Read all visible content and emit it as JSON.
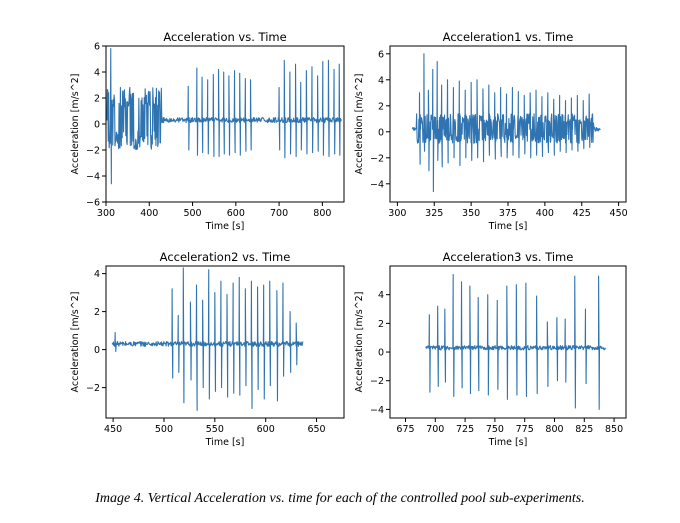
{
  "caption": "Image 4. Vertical Acceleration vs. time for each of the controlled pool sub-experiments.",
  "colors": {
    "line": "#2f74b0",
    "axes": "#000000"
  },
  "chart_data": [
    {
      "type": "line",
      "title": "Acceleration vs. Time",
      "xlabel": "Time [s]",
      "ylabel": "Acceleration [m/s^2]",
      "xlim": [
        300,
        850
      ],
      "ylim": [
        -6,
        6
      ],
      "xticks": [
        300,
        400,
        500,
        600,
        700,
        800
      ],
      "yticks": [
        -6,
        -4,
        -2,
        0,
        2,
        4,
        6
      ],
      "grid": false,
      "series": [
        {
          "baseline": 0.3,
          "baseline_noise": 0.2,
          "noisy_spans": [
            {
              "x": [
                303,
                428
              ],
              "amplitude": 2.6
            }
          ],
          "spikes": [
            {
              "x": 311,
              "high": 5.8,
              "low": -4.6
            },
            {
              "x": 490,
              "high": 2.9,
              "low": -2.0
            },
            {
              "x": 510,
              "high": 4.3,
              "low": -2.4
            },
            {
              "x": 522,
              "high": 3.6,
              "low": -2.2
            },
            {
              "x": 535,
              "high": 3.4,
              "low": -2.3
            },
            {
              "x": 548,
              "high": 3.8,
              "low": -2.5
            },
            {
              "x": 560,
              "high": 4.2,
              "low": -2.5
            },
            {
              "x": 572,
              "high": 4.0,
              "low": -2.3
            },
            {
              "x": 584,
              "high": 3.7,
              "low": -2.4
            },
            {
              "x": 597,
              "high": 4.1,
              "low": -2.2
            },
            {
              "x": 609,
              "high": 3.9,
              "low": -2.4
            },
            {
              "x": 622,
              "high": 3.5,
              "low": -2.1
            },
            {
              "x": 634,
              "high": 3.4,
              "low": -2.0
            },
            {
              "x": 700,
              "high": 2.8,
              "low": -2.0
            },
            {
              "x": 712,
              "high": 4.9,
              "low": -2.6
            },
            {
              "x": 725,
              "high": 4.0,
              "low": -2.3
            },
            {
              "x": 738,
              "high": 4.6,
              "low": -2.5
            },
            {
              "x": 750,
              "high": 3.2,
              "low": -2.0
            },
            {
              "x": 763,
              "high": 4.1,
              "low": -2.3
            },
            {
              "x": 776,
              "high": 4.4,
              "low": -2.2
            },
            {
              "x": 789,
              "high": 3.7,
              "low": -2.1
            },
            {
              "x": 801,
              "high": 4.8,
              "low": -2.4
            },
            {
              "x": 814,
              "high": 4.9,
              "low": -2.5
            },
            {
              "x": 827,
              "high": 4.2,
              "low": -2.3
            },
            {
              "x": 839,
              "high": 4.6,
              "low": -2.4
            }
          ]
        }
      ]
    },
    {
      "type": "line",
      "title": "Acceleration1 vs. Time",
      "xlabel": "Time [s]",
      "ylabel": "Acceleration [m/s^2]",
      "xlim": [
        295,
        455
      ],
      "ylim": [
        -5.4,
        6.6
      ],
      "xticks": [
        300,
        325,
        350,
        375,
        400,
        425,
        450
      ],
      "yticks": [
        -4,
        -2,
        0,
        2,
        4,
        6
      ],
      "grid": false,
      "series": [
        {
          "baseline": 0.2,
          "baseline_noise": 0.15,
          "noisy_spans": [
            {
              "x": [
                313,
                433
              ],
              "amplitude": 1.2
            }
          ],
          "spikes": [
            {
              "x": 315,
              "high": 3.0,
              "low": -2.5
            },
            {
              "x": 318,
              "high": 6.0,
              "low": -1.5
            },
            {
              "x": 321,
              "high": 3.2,
              "low": -3.0
            },
            {
              "x": 324,
              "high": 4.8,
              "low": -4.6
            },
            {
              "x": 327,
              "high": 5.4,
              "low": -2.2
            },
            {
              "x": 330,
              "high": 3.6,
              "low": -2.7
            },
            {
              "x": 334,
              "high": 4.0,
              "low": -2.4
            },
            {
              "x": 338,
              "high": 3.4,
              "low": -2.0
            },
            {
              "x": 342,
              "high": 3.9,
              "low": -2.6
            },
            {
              "x": 346,
              "high": 3.2,
              "low": -2.0
            },
            {
              "x": 350,
              "high": 3.8,
              "low": -2.2
            },
            {
              "x": 354,
              "high": 4.0,
              "low": -2.0
            },
            {
              "x": 358,
              "high": 3.3,
              "low": -2.3
            },
            {
              "x": 362,
              "high": 3.6,
              "low": -1.8
            },
            {
              "x": 366,
              "high": 3.0,
              "low": -2.1
            },
            {
              "x": 370,
              "high": 3.4,
              "low": -1.9
            },
            {
              "x": 374,
              "high": 2.9,
              "low": -2.0
            },
            {
              "x": 378,
              "high": 3.4,
              "low": -1.8
            },
            {
              "x": 382,
              "high": 3.1,
              "low": -2.0
            },
            {
              "x": 386,
              "high": 2.8,
              "low": -1.7
            },
            {
              "x": 390,
              "high": 3.0,
              "low": -2.0
            },
            {
              "x": 394,
              "high": 3.2,
              "low": -1.8
            },
            {
              "x": 398,
              "high": 2.7,
              "low": -1.9
            },
            {
              "x": 402,
              "high": 3.0,
              "low": -1.6
            },
            {
              "x": 406,
              "high": 2.5,
              "low": -1.8
            },
            {
              "x": 410,
              "high": 2.8,
              "low": -1.5
            },
            {
              "x": 414,
              "high": 2.4,
              "low": -1.6
            },
            {
              "x": 418,
              "high": 2.6,
              "low": -1.4
            },
            {
              "x": 422,
              "high": 2.8,
              "low": -1.5
            },
            {
              "x": 426,
              "high": 2.4,
              "low": -1.3
            },
            {
              "x": 430,
              "high": 2.9,
              "low": -1.2
            }
          ]
        }
      ]
    },
    {
      "type": "line",
      "title": "Acceleration2 vs. Time",
      "xlabel": "Time [s]",
      "ylabel": "Acceleration [m/s^2]",
      "xlim": [
        443,
        677
      ],
      "ylim": [
        -3.6,
        4.4
      ],
      "xticks": [
        450,
        500,
        550,
        600,
        650
      ],
      "yticks": [
        -2,
        0,
        2,
        4
      ],
      "grid": false,
      "series": [
        {
          "baseline": 0.3,
          "baseline_noise": 0.13,
          "noisy_spans": [],
          "spikes": [
            {
              "x": 452,
              "high": 0.9,
              "low": -0.1
            },
            {
              "x": 508,
              "high": 3.2,
              "low": -1.5
            },
            {
              "x": 514,
              "high": 1.8,
              "low": -1.2
            },
            {
              "x": 519,
              "high": 4.3,
              "low": -2.8
            },
            {
              "x": 526,
              "high": 2.5,
              "low": -1.6
            },
            {
              "x": 532,
              "high": 3.4,
              "low": -3.2
            },
            {
              "x": 538,
              "high": 2.6,
              "low": -2.0
            },
            {
              "x": 544,
              "high": 4.2,
              "low": -2.6
            },
            {
              "x": 550,
              "high": 3.0,
              "low": -2.2
            },
            {
              "x": 556,
              "high": 3.6,
              "low": -2.0
            },
            {
              "x": 562,
              "high": 2.9,
              "low": -2.5
            },
            {
              "x": 568,
              "high": 3.5,
              "low": -2.3
            },
            {
              "x": 574,
              "high": 3.8,
              "low": -2.4
            },
            {
              "x": 580,
              "high": 3.2,
              "low": -1.9
            },
            {
              "x": 586,
              "high": 3.6,
              "low": -3.1
            },
            {
              "x": 592,
              "high": 3.3,
              "low": -2.1
            },
            {
              "x": 598,
              "high": 3.4,
              "low": -2.6
            },
            {
              "x": 604,
              "high": 3.6,
              "low": -1.9
            },
            {
              "x": 611,
              "high": 3.1,
              "low": -2.7
            },
            {
              "x": 617,
              "high": 3.5,
              "low": -1.4
            },
            {
              "x": 624,
              "high": 2.0,
              "low": -1.2
            },
            {
              "x": 630,
              "high": 1.4,
              "low": -0.8
            }
          ]
        }
      ]
    },
    {
      "type": "line",
      "title": "Acceleration3 vs. Time",
      "xlabel": "Time [s]",
      "ylabel": "Acceleration [m/s^2]",
      "xlim": [
        662,
        860
      ],
      "ylim": [
        -4.6,
        6.0
      ],
      "xticks": [
        675,
        700,
        725,
        750,
        775,
        800,
        825,
        850
      ],
      "yticks": [
        -4,
        -2,
        0,
        2,
        4
      ],
      "grid": false,
      "series": [
        {
          "baseline": 0.3,
          "baseline_noise": 0.15,
          "noisy_spans": [],
          "spikes": [
            {
              "x": 695,
              "high": 2.6,
              "low": -2.8
            },
            {
              "x": 702,
              "high": 3.2,
              "low": -2.4
            },
            {
              "x": 708,
              "high": 3.0,
              "low": -2.1
            },
            {
              "x": 715,
              "high": 5.4,
              "low": -3.1
            },
            {
              "x": 722,
              "high": 4.9,
              "low": -2.5
            },
            {
              "x": 729,
              "high": 4.6,
              "low": -2.9
            },
            {
              "x": 736,
              "high": 3.8,
              "low": -2.7
            },
            {
              "x": 744,
              "high": 4.0,
              "low": -3.0
            },
            {
              "x": 752,
              "high": 3.6,
              "low": -2.6
            },
            {
              "x": 760,
              "high": 4.6,
              "low": -3.3
            },
            {
              "x": 768,
              "high": 4.7,
              "low": -3.0
            },
            {
              "x": 776,
              "high": 4.8,
              "low": -3.1
            },
            {
              "x": 785,
              "high": 3.9,
              "low": -2.9
            },
            {
              "x": 794,
              "high": 2.1,
              "low": -2.4
            },
            {
              "x": 802,
              "high": 2.4,
              "low": -2.0
            },
            {
              "x": 809,
              "high": 2.3,
              "low": -2.1
            },
            {
              "x": 817,
              "high": 5.3,
              "low": -3.9
            },
            {
              "x": 826,
              "high": 3.0,
              "low": -2.2
            },
            {
              "x": 837,
              "high": 5.3,
              "low": -4.0
            }
          ]
        }
      ]
    }
  ]
}
